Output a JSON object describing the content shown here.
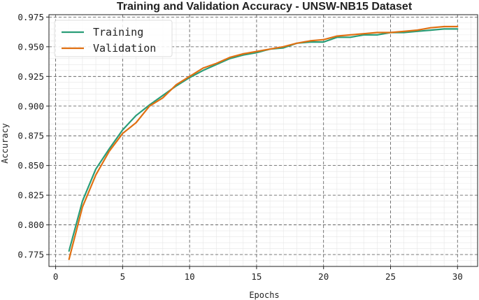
{
  "chart_data": {
    "type": "line",
    "title": "Training and Validation Accuracy - UNSW-NB15 Dataset",
    "xlabel": "Epochs",
    "ylabel": "Accuracy",
    "xlim": [
      -0.5,
      31.5
    ],
    "ylim": [
      0.765,
      0.977
    ],
    "xticks": [
      0,
      5,
      10,
      15,
      20,
      25,
      30
    ],
    "yticks": [
      0.775,
      0.8,
      0.825,
      0.85,
      0.875,
      0.9,
      0.925,
      0.95,
      0.975
    ],
    "grid": true,
    "legend_position": "top-left",
    "x": [
      1,
      2,
      3,
      4,
      5,
      6,
      7,
      8,
      9,
      10,
      11,
      12,
      13,
      14,
      15,
      16,
      17,
      18,
      19,
      20,
      21,
      22,
      23,
      24,
      25,
      26,
      27,
      28,
      29,
      30
    ],
    "series": [
      {
        "name": "Training",
        "color": "#2a9d78",
        "values": [
          0.778,
          0.82,
          0.847,
          0.864,
          0.88,
          0.892,
          0.901,
          0.909,
          0.917,
          0.924,
          0.93,
          0.935,
          0.94,
          0.943,
          0.945,
          0.948,
          0.949,
          0.953,
          0.954,
          0.954,
          0.958,
          0.958,
          0.96,
          0.96,
          0.962,
          0.962,
          0.963,
          0.964,
          0.965,
          0.965
        ]
      },
      {
        "name": "Validation",
        "color": "#e07012",
        "values": [
          0.771,
          0.815,
          0.842,
          0.862,
          0.877,
          0.886,
          0.9,
          0.907,
          0.918,
          0.925,
          0.932,
          0.936,
          0.941,
          0.944,
          0.946,
          0.948,
          0.95,
          0.953,
          0.955,
          0.956,
          0.959,
          0.96,
          0.961,
          0.962,
          0.962,
          0.963,
          0.964,
          0.966,
          0.967,
          0.967
        ]
      }
    ]
  }
}
